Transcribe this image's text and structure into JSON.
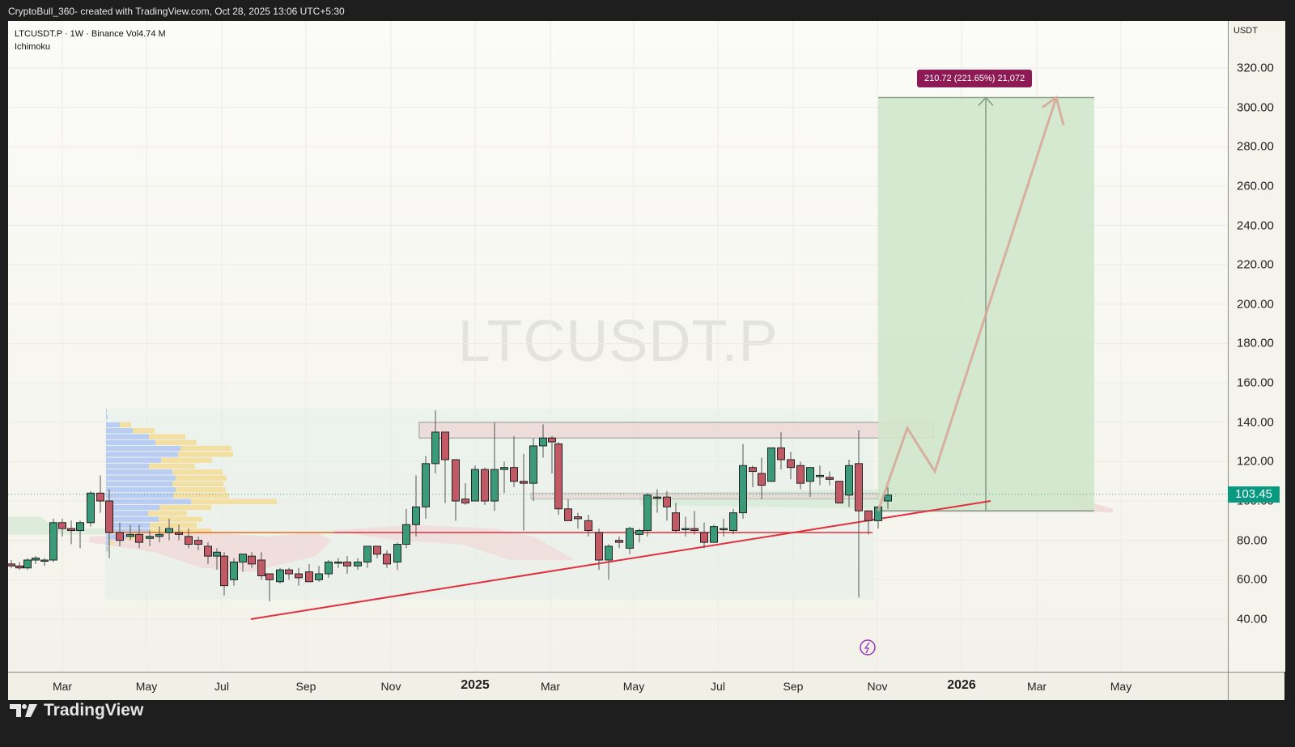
{
  "header": {
    "attribution": "CryptoBull_360- created with TradingView.com, Oct 28, 2025 13:06 UTC+5:30"
  },
  "legend": {
    "symbol_line": "LTCUSDT.P · 1W · Binance  Vol4.74 M",
    "indicator": "Ichimoku"
  },
  "watermark": "LTCUSDT.P",
  "price_axis": {
    "unit": "USDT",
    "ticks": [
      "320.00",
      "300.00",
      "280.00",
      "260.00",
      "240.00",
      "220.00",
      "200.00",
      "180.00",
      "160.00",
      "140.00",
      "120.00",
      "100.00",
      "80.00",
      "60.00",
      "40.00"
    ],
    "current_price": "103.45",
    "current_price_color": "#089981"
  },
  "time_axis": {
    "ticks": [
      {
        "label": "Mar",
        "x": 77,
        "bold": false
      },
      {
        "label": "May",
        "x": 181,
        "bold": false
      },
      {
        "label": "Jul",
        "x": 274,
        "bold": false
      },
      {
        "label": "Sep",
        "x": 378,
        "bold": false
      },
      {
        "label": "Nov",
        "x": 483,
        "bold": false
      },
      {
        "label": "2025",
        "x": 587,
        "bold": true
      },
      {
        "label": "Mar",
        "x": 680,
        "bold": false
      },
      {
        "label": "May",
        "x": 783,
        "bold": false
      },
      {
        "label": "Jul",
        "x": 887,
        "bold": false
      },
      {
        "label": "Sep",
        "x": 980,
        "bold": false
      },
      {
        "label": "Nov",
        "x": 1084,
        "bold": false
      },
      {
        "label": "2026",
        "x": 1188,
        "bold": true
      },
      {
        "label": "Mar",
        "x": 1281,
        "bold": false
      },
      {
        "label": "May",
        "x": 1385,
        "bold": false
      }
    ]
  },
  "measure_tool": {
    "label": "210.72 (221.65%) 21,072",
    "color": "#8e1a55"
  },
  "footer": {
    "brand": "TradingView"
  },
  "colors": {
    "up": "#3a9a7a",
    "down": "#c25a66",
    "trendline": "#e0303d",
    "target_zone": "#cfe7cb",
    "resistance_zone": "#ecd3d3",
    "projection_path": "#d8a497"
  },
  "chart_data": {
    "type": "candlestick",
    "title": "LTCUSDT.P · 1W · Binance",
    "xlabel": "",
    "ylabel": "USDT",
    "ylim": [
      20,
      330
    ],
    "grid": true,
    "legend_position": "top-left",
    "annotations": [
      "Resistance zone ~132-140 USDT",
      "Support zone ~101-104 USDT",
      "Horizontal support line ~84 USDT",
      "Ascending trendline from ~40 (Aug 2024) to ~100 (Jan 2026)",
      "Long position target ~305 USDT, entry ~95 USDT",
      "Projection path: 95 -> 137 -> 115 -> 305",
      "Measure: 210.72 (221.65%) 21,072",
      "Volume profile (blue/yellow) spanning ~50-147 USDT"
    ],
    "candles": [
      {
        "x": 14,
        "o": 68,
        "h": 70,
        "l": 66,
        "c": 67
      },
      {
        "x": 24,
        "o": 67,
        "h": 69,
        "l": 65,
        "c": 66
      },
      {
        "x": 34,
        "o": 66,
        "h": 71,
        "l": 65,
        "c": 70
      },
      {
        "x": 44,
        "o": 70,
        "h": 72,
        "l": 68,
        "c": 71
      },
      {
        "x": 55,
        "o": 70,
        "h": 71,
        "l": 67,
        "c": 70
      },
      {
        "x": 66,
        "o": 70,
        "h": 91,
        "l": 69,
        "c": 89
      },
      {
        "x": 77,
        "o": 89,
        "h": 91,
        "l": 82,
        "c": 86
      },
      {
        "x": 88,
        "o": 86,
        "h": 90,
        "l": 78,
        "c": 85
      },
      {
        "x": 99,
        "o": 85,
        "h": 90,
        "l": 76,
        "c": 89
      },
      {
        "x": 112,
        "o": 89,
        "h": 105,
        "l": 87,
        "c": 104
      },
      {
        "x": 124,
        "o": 104,
        "h": 113,
        "l": 94,
        "c": 100
      },
      {
        "x": 135,
        "o": 100,
        "h": 106,
        "l": 71,
        "c": 84
      },
      {
        "x": 148,
        "o": 84,
        "h": 89,
        "l": 77,
        "c": 80
      },
      {
        "x": 161,
        "o": 82,
        "h": 88,
        "l": 80,
        "c": 83
      },
      {
        "x": 172,
        "o": 83,
        "h": 88,
        "l": 76,
        "c": 79
      },
      {
        "x": 185,
        "o": 81,
        "h": 85,
        "l": 77,
        "c": 82
      },
      {
        "x": 197,
        "o": 82,
        "h": 87,
        "l": 79,
        "c": 83
      },
      {
        "x": 209,
        "o": 84,
        "h": 91,
        "l": 80,
        "c": 86
      },
      {
        "x": 221,
        "o": 84,
        "h": 88,
        "l": 80,
        "c": 83
      },
      {
        "x": 233,
        "o": 82,
        "h": 86,
        "l": 76,
        "c": 78
      },
      {
        "x": 245,
        "o": 80,
        "h": 82,
        "l": 75,
        "c": 78
      },
      {
        "x": 257,
        "o": 77,
        "h": 79,
        "l": 68,
        "c": 72
      },
      {
        "x": 268,
        "o": 72,
        "h": 76,
        "l": 65,
        "c": 74
      },
      {
        "x": 277,
        "o": 72,
        "h": 74,
        "l": 52,
        "c": 57
      },
      {
        "x": 289,
        "o": 60,
        "h": 71,
        "l": 57,
        "c": 69
      },
      {
        "x": 300,
        "o": 69,
        "h": 73,
        "l": 64,
        "c": 73
      },
      {
        "x": 311,
        "o": 72,
        "h": 74,
        "l": 66,
        "c": 68
      },
      {
        "x": 323,
        "o": 70,
        "h": 74,
        "l": 60,
        "c": 62
      },
      {
        "x": 333,
        "o": 63,
        "h": 63,
        "l": 49,
        "c": 60
      },
      {
        "x": 346,
        "o": 59,
        "h": 66,
        "l": 58,
        "c": 65
      },
      {
        "x": 357,
        "o": 65,
        "h": 66,
        "l": 60,
        "c": 63
      },
      {
        "x": 369,
        "o": 63,
        "h": 66,
        "l": 57,
        "c": 61
      },
      {
        "x": 382,
        "o": 64,
        "h": 68,
        "l": 59,
        "c": 59
      },
      {
        "x": 394,
        "o": 60,
        "h": 67,
        "l": 59,
        "c": 63
      },
      {
        "x": 406,
        "o": 63,
        "h": 70,
        "l": 61,
        "c": 69
      },
      {
        "x": 418,
        "o": 69,
        "h": 71,
        "l": 66,
        "c": 69
      },
      {
        "x": 429,
        "o": 69,
        "h": 72,
        "l": 63,
        "c": 67
      },
      {
        "x": 442,
        "o": 67,
        "h": 71,
        "l": 65,
        "c": 69
      },
      {
        "x": 454,
        "o": 69,
        "h": 77,
        "l": 66,
        "c": 77
      },
      {
        "x": 466,
        "o": 77,
        "h": 77,
        "l": 71,
        "c": 73
      },
      {
        "x": 478,
        "o": 73,
        "h": 75,
        "l": 66,
        "c": 68
      },
      {
        "x": 491,
        "o": 69,
        "h": 79,
        "l": 65,
        "c": 78
      },
      {
        "x": 502,
        "o": 78,
        "h": 96,
        "l": 76,
        "c": 88
      },
      {
        "x": 514,
        "o": 88,
        "h": 113,
        "l": 82,
        "c": 97
      },
      {
        "x": 526,
        "o": 97,
        "h": 123,
        "l": 91,
        "c": 119
      },
      {
        "x": 538,
        "o": 119,
        "h": 146,
        "l": 114,
        "c": 135
      },
      {
        "x": 550,
        "o": 135,
        "h": 135,
        "l": 99,
        "c": 121
      },
      {
        "x": 563,
        "o": 121,
        "h": 118,
        "l": 90,
        "c": 100
      },
      {
        "x": 575,
        "o": 101,
        "h": 109,
        "l": 98,
        "c": 99
      },
      {
        "x": 587,
        "o": 100,
        "h": 118,
        "l": 100,
        "c": 116
      },
      {
        "x": 599,
        "o": 116,
        "h": 117,
        "l": 98,
        "c": 100
      },
      {
        "x": 611,
        "o": 100,
        "h": 140,
        "l": 95,
        "c": 116
      },
      {
        "x": 623,
        "o": 116,
        "h": 120,
        "l": 104,
        "c": 117
      },
      {
        "x": 635,
        "o": 117,
        "h": 133,
        "l": 107,
        "c": 110
      },
      {
        "x": 647,
        "o": 110,
        "h": 124,
        "l": 85,
        "c": 109
      },
      {
        "x": 659,
        "o": 109,
        "h": 132,
        "l": 100,
        "c": 128
      },
      {
        "x": 671,
        "o": 128,
        "h": 139,
        "l": 122,
        "c": 132
      },
      {
        "x": 682,
        "o": 132,
        "h": 133,
        "l": 114,
        "c": 130
      },
      {
        "x": 690,
        "o": 129,
        "h": 130,
        "l": 93,
        "c": 96
      },
      {
        "x": 702,
        "o": 96,
        "h": 101,
        "l": 91,
        "c": 90
      },
      {
        "x": 714,
        "o": 92,
        "h": 94,
        "l": 86,
        "c": 91
      },
      {
        "x": 727,
        "o": 90,
        "h": 93,
        "l": 82,
        "c": 85
      },
      {
        "x": 740,
        "o": 84,
        "h": 86,
        "l": 65,
        "c": 70
      },
      {
        "x": 752,
        "o": 70,
        "h": 78,
        "l": 60,
        "c": 77
      },
      {
        "x": 765,
        "o": 80,
        "h": 82,
        "l": 76,
        "c": 79
      },
      {
        "x": 778,
        "o": 76,
        "h": 87,
        "l": 73,
        "c": 86
      },
      {
        "x": 790,
        "o": 83,
        "h": 86,
        "l": 79,
        "c": 85
      },
      {
        "x": 800,
        "o": 85,
        "h": 104,
        "l": 82,
        "c": 103
      },
      {
        "x": 812,
        "o": 102,
        "h": 106,
        "l": 94,
        "c": 102
      },
      {
        "x": 824,
        "o": 102,
        "h": 105,
        "l": 90,
        "c": 97
      },
      {
        "x": 835,
        "o": 94,
        "h": 99,
        "l": 84,
        "c": 85
      },
      {
        "x": 847,
        "o": 86,
        "h": 92,
        "l": 82,
        "c": 86
      },
      {
        "x": 858,
        "o": 86,
        "h": 95,
        "l": 83,
        "c": 85
      },
      {
        "x": 870,
        "o": 84,
        "h": 89,
        "l": 76,
        "c": 79
      },
      {
        "x": 882,
        "o": 79,
        "h": 88,
        "l": 79,
        "c": 87
      },
      {
        "x": 894,
        "o": 86,
        "h": 91,
        "l": 82,
        "c": 86
      },
      {
        "x": 906,
        "o": 85,
        "h": 96,
        "l": 83,
        "c": 94
      },
      {
        "x": 918,
        "o": 94,
        "h": 129,
        "l": 91,
        "c": 118
      },
      {
        "x": 930,
        "o": 117,
        "h": 118,
        "l": 107,
        "c": 115
      },
      {
        "x": 941,
        "o": 114,
        "h": 122,
        "l": 101,
        "c": 108
      },
      {
        "x": 953,
        "o": 110,
        "h": 126,
        "l": 110,
        "c": 127
      },
      {
        "x": 965,
        "o": 127,
        "h": 135,
        "l": 116,
        "c": 121
      },
      {
        "x": 977,
        "o": 121,
        "h": 125,
        "l": 111,
        "c": 117
      },
      {
        "x": 989,
        "o": 118,
        "h": 120,
        "l": 106,
        "c": 109
      },
      {
        "x": 1001,
        "o": 110,
        "h": 116,
        "l": 102,
        "c": 117
      },
      {
        "x": 1013,
        "o": 113,
        "h": 118,
        "l": 108,
        "c": 113
      },
      {
        "x": 1025,
        "o": 112,
        "h": 115,
        "l": 108,
        "c": 111
      },
      {
        "x": 1037,
        "o": 110,
        "h": 110,
        "l": 99,
        "c": 99
      },
      {
        "x": 1049,
        "o": 103,
        "h": 121,
        "l": 97,
        "c": 118
      },
      {
        "x": 1061,
        "o": 119,
        "h": 136,
        "l": 51,
        "c": 95
      },
      {
        "x": 1073,
        "o": 95,
        "h": 95,
        "l": 83,
        "c": 90
      },
      {
        "x": 1085,
        "o": 90,
        "h": 95,
        "l": 86,
        "c": 97
      },
      {
        "x": 1097,
        "o": 100,
        "h": 107,
        "l": 96,
        "c": 103
      }
    ],
    "levels": {
      "resistance_zone": [
        132,
        140
      ],
      "support_zone": [
        101,
        104
      ],
      "horizontal_support": 84,
      "trendline": {
        "from": {
          "date": "Aug 2024",
          "price": 40
        },
        "to": {
          "date": "Jan 2026",
          "price": 100
        }
      },
      "target": 305,
      "entry": 95
    }
  }
}
